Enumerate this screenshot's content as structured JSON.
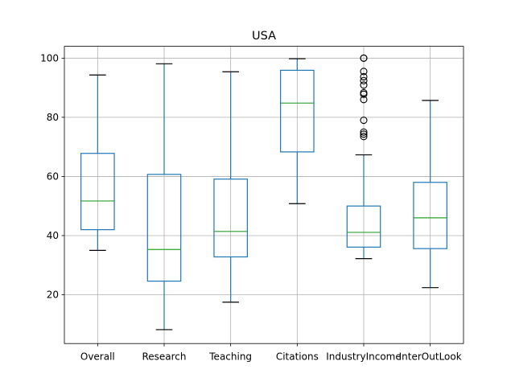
{
  "chart_data": {
    "type": "box",
    "title": "USA",
    "xlabel": "",
    "ylabel": "",
    "ylim": [
      3.5,
      104
    ],
    "yticks": [
      20,
      40,
      60,
      80,
      100
    ],
    "grid": true,
    "categories": [
      "Overall",
      "Research",
      "Teaching",
      "Citations",
      "IndustryIncome",
      "InterOutLook"
    ],
    "boxes": [
      {
        "name": "Overall",
        "whislo": 35.0,
        "q1": 42.0,
        "med": 51.7,
        "q3": 67.8,
        "whishi": 94.3,
        "fliers": []
      },
      {
        "name": "Research",
        "whislo": 8.2,
        "q1": 24.6,
        "med": 35.3,
        "q3": 60.7,
        "whishi": 98.1,
        "fliers": []
      },
      {
        "name": "Teaching",
        "whislo": 17.5,
        "q1": 32.8,
        "med": 41.4,
        "q3": 59.1,
        "whishi": 95.4,
        "fliers": []
      },
      {
        "name": "Citations",
        "whislo": 50.8,
        "q1": 68.3,
        "med": 84.8,
        "q3": 95.9,
        "whishi": 99.8,
        "fliers": []
      },
      {
        "name": "IndustryIncome",
        "whislo": 32.2,
        "q1": 36.1,
        "med": 41.1,
        "q3": 50.0,
        "whishi": 67.3,
        "fliers": [
          73.5,
          74.3,
          75.0,
          79.0,
          86.0,
          87.8,
          88.3,
          90.9,
          92.4,
          93.7,
          95.5,
          100.0,
          100.0
        ]
      },
      {
        "name": "InterOutLook",
        "whislo": 22.4,
        "q1": 35.6,
        "med": 46.0,
        "q3": 58.0,
        "whishi": 85.7,
        "fliers": []
      }
    ]
  }
}
